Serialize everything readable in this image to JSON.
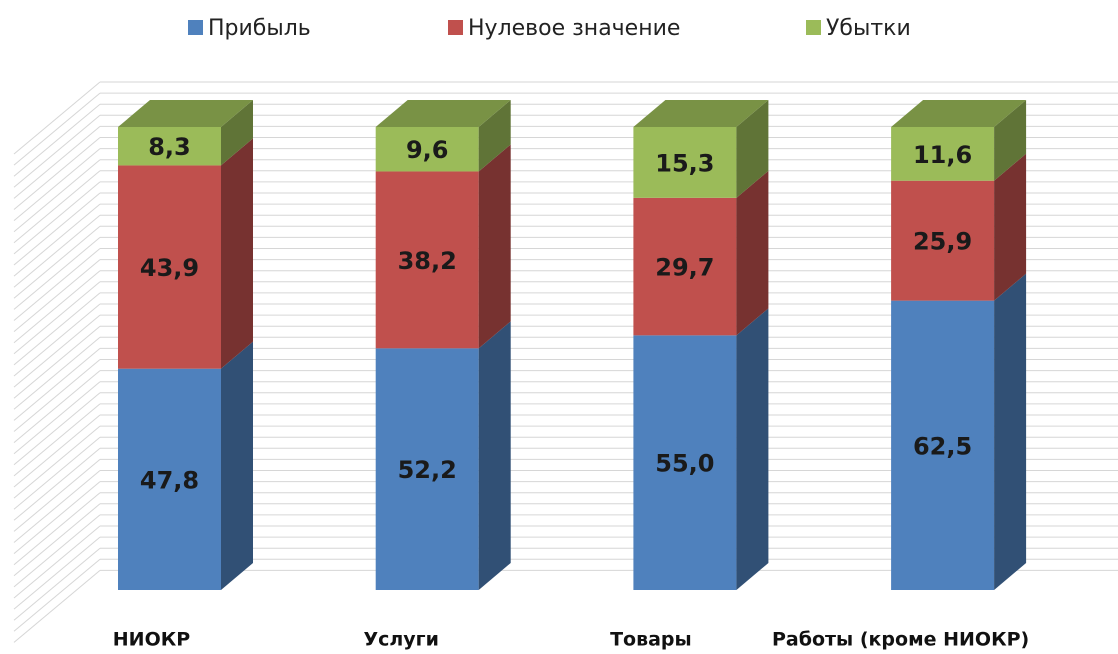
{
  "chart_data": {
    "type": "bar3d_stacked",
    "categories": [
      "НИОКР",
      "Услуги",
      "Товары",
      "Работы (кроме НИОКР)"
    ],
    "series": [
      {
        "name": "Прибыль",
        "color": "#4f81bd",
        "values": [
          47.8,
          52.2,
          55.0,
          62.5
        ],
        "value_labels": [
          "47,8",
          "52,2",
          "55,0",
          "62,5"
        ]
      },
      {
        "name": "Нулевое значение",
        "color": "#c0504d",
        "values": [
          43.9,
          38.2,
          29.7,
          25.9
        ],
        "value_labels": [
          "43,9",
          "38,2",
          "29,7",
          "25,9"
        ]
      },
      {
        "name": "Убытки",
        "color": "#9bbb59",
        "values": [
          8.3,
          9.6,
          15.3,
          11.6
        ],
        "value_labels": [
          "8,3",
          "9,6",
          "15,3",
          "11,6"
        ]
      }
    ],
    "ylim": [
      0,
      100
    ],
    "legend": "top"
  }
}
